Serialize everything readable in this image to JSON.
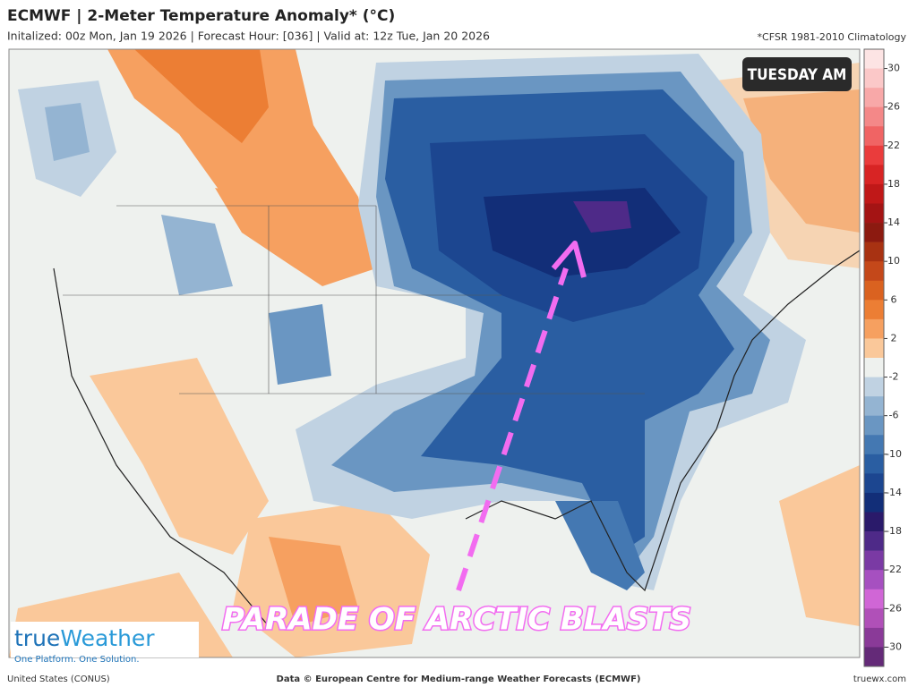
{
  "header": {
    "title": "ECMWF | 2-Meter Temperature Anomaly* (°C)",
    "subtitle": "Initalized: 00z Mon, Jan 19 2026 | Forecast Hour: [036] | Valid at: 12z Tue, Jan 20 2026",
    "note": "*CFSR 1981-2010 Climatology"
  },
  "map": {
    "badge": "TUESDAY AM",
    "annotation": "PARADE OF ARCTIC BLASTS"
  },
  "colorbar": {
    "ticks": [
      30,
      26,
      22,
      18,
      14,
      10,
      6,
      2,
      -2,
      -6,
      -10,
      -14,
      -18,
      -22,
      -26,
      -30
    ],
    "colors": [
      "#fde4e4",
      "#fbc8c8",
      "#f8a8a8",
      "#f48888",
      "#f06464",
      "#ea3c3c",
      "#d82424",
      "#c01818",
      "#a41414",
      "#8c1a10",
      "#a83212",
      "#c4481a",
      "#da6220",
      "#ec7e34",
      "#f6a060",
      "#fac89a",
      "#eef1ee",
      "#c0d2e2",
      "#94b4d2",
      "#6a96c2",
      "#4478b2",
      "#2a5ea2",
      "#1c4690",
      "#122e78",
      "#2a1a6a",
      "#4e2a88",
      "#7a3aa4",
      "#a650c0",
      "#d066d6",
      "#b050b8",
      "#8a3a98",
      "#642a78"
    ]
  },
  "logo": {
    "name_a": "true",
    "name_b": "Weather",
    "tagline": "One Platform. One Solution."
  },
  "footer": {
    "left": "United States (CONUS)",
    "center": "Data © European Centre for Medium-range Weather Forecasts (ECMWF)",
    "right": "truewx.com"
  }
}
